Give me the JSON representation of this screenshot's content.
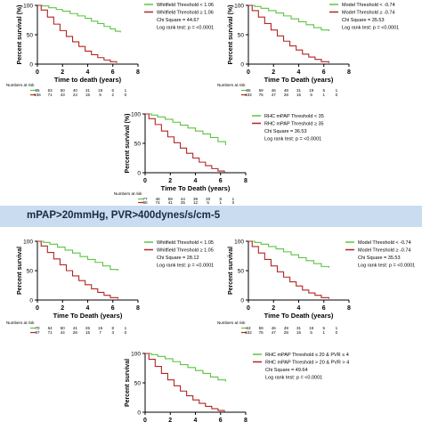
{
  "section_header": "mPAP>20mmHg, PVR>400dynes/s/cm-5",
  "colors": {
    "green": "#5cc442",
    "red": "#b52424",
    "axis": "#000000",
    "banner": "#c9dcf0"
  },
  "chart_data": [
    {
      "id": "p1",
      "type": "line",
      "ylabel": "Percent survival (%)",
      "xlabel": "Time to death (years)",
      "xlim": [
        0,
        8
      ],
      "ylim": [
        0,
        100
      ],
      "xticks": [
        "0",
        "2",
        "4",
        "6",
        "8"
      ],
      "yticks": [
        "0",
        "50",
        "100"
      ],
      "legend": [
        "Whitfield Threshold < 1.06",
        "Whitfield Threshold ≥ 1.06",
        "Chi Square = 44.67",
        "Log rank test: p = <0.0001"
      ],
      "risk_label": "Numbers at risk",
      "risk_rows": [
        [
          "85",
          "63",
          "50",
          "40",
          "31",
          "19",
          "6",
          "1"
        ],
        [
          "106",
          "71",
          "43",
          "24",
          "15",
          "5",
          "2",
          "0"
        ]
      ],
      "series": [
        {
          "color_key": "green",
          "x": [
            0,
            0.4,
            0.9,
            1.5,
            2.0,
            2.6,
            3.2,
            3.8,
            4.3,
            4.8,
            5.3,
            5.8,
            6.2,
            6.6
          ],
          "y": [
            100,
            99,
            96,
            93,
            90,
            86,
            82,
            78,
            73,
            69,
            64,
            60,
            56,
            54
          ]
        },
        {
          "color_key": "red",
          "x": [
            0,
            0.3,
            0.8,
            1.3,
            1.8,
            2.3,
            2.8,
            3.3,
            3.8,
            4.3,
            4.8,
            5.3,
            5.8,
            6.3
          ],
          "y": [
            100,
            92,
            80,
            68,
            57,
            47,
            38,
            30,
            22,
            16,
            11,
            7,
            4,
            2
          ]
        }
      ]
    },
    {
      "id": "p2",
      "type": "line",
      "ylabel": "Percent survival (%)",
      "xlabel": "Time To Death (years)",
      "xlim": [
        0,
        8
      ],
      "ylim": [
        0,
        100
      ],
      "xticks": [
        "0",
        "2",
        "4",
        "6",
        "8"
      ],
      "yticks": [
        "0",
        "50",
        "100"
      ],
      "legend": [
        "Model Threshold < -0.74",
        "Model Threshold ≥ -0.74",
        "Chi Square = 35.53",
        "Log rank test: p = <0.0001"
      ],
      "risk_label": "Numbers at risk",
      "risk_rows": [
        [
          "85",
          "59",
          "46",
          "48",
          "31",
          "19",
          "5",
          "1"
        ],
        [
          "102",
          "75",
          "47",
          "28",
          "15",
          "5",
          "1",
          "0"
        ]
      ],
      "series": [
        {
          "color_key": "green",
          "x": [
            0,
            0.5,
            1.0,
            1.6,
            2.2,
            2.8,
            3.4,
            4.0,
            4.6,
            5.2,
            5.8,
            6.4
          ],
          "y": [
            100,
            98,
            95,
            91,
            87,
            82,
            77,
            72,
            67,
            62,
            58,
            56
          ]
        },
        {
          "color_key": "red",
          "x": [
            0,
            0.3,
            0.8,
            1.3,
            1.8,
            2.3,
            2.8,
            3.3,
            3.8,
            4.3,
            4.8,
            5.3,
            5.8,
            6.4
          ],
          "y": [
            100,
            91,
            80,
            69,
            58,
            48,
            39,
            31,
            24,
            17,
            12,
            8,
            4,
            2
          ]
        }
      ]
    },
    {
      "id": "p3",
      "type": "line",
      "ylabel": "Percent survival (%)",
      "xlabel": "Time To Death (years)",
      "xlim": [
        0,
        8
      ],
      "ylim": [
        0,
        100
      ],
      "xticks": [
        "0",
        "2",
        "4",
        "6",
        "8"
      ],
      "yticks": [
        "0",
        "50",
        "100"
      ],
      "legend": [
        "RHC mPAP Threshold < 35",
        "RHC mPAP Threshold ≥ 35",
        "Chi Square = 36.53",
        "Log rank test: p = <0.0001"
      ],
      "risk_label": "Numbers at risk",
      "risk_rows": [
        [
          "77",
          "46",
          "59",
          "44",
          "39",
          "20",
          "8",
          "1"
        ],
        [
          "90",
          "74",
          "41",
          "25",
          "12",
          "5",
          "1",
          "0"
        ]
      ],
      "series": [
        {
          "color_key": "green",
          "x": [
            0,
            0.5,
            1.0,
            1.6,
            2.2,
            2.8,
            3.4,
            4.0,
            4.6,
            5.2,
            5.8,
            6.4
          ],
          "y": [
            100,
            98,
            95,
            91,
            86,
            81,
            76,
            71,
            66,
            60,
            53,
            47
          ]
        },
        {
          "color_key": "red",
          "x": [
            0,
            0.3,
            0.8,
            1.3,
            1.8,
            2.3,
            2.8,
            3.3,
            3.8,
            4.3,
            4.8,
            5.3,
            5.8,
            6.3
          ],
          "y": [
            100,
            92,
            82,
            71,
            61,
            51,
            42,
            33,
            25,
            18,
            12,
            7,
            3,
            1
          ]
        }
      ]
    },
    {
      "id": "p4",
      "type": "line",
      "ylabel": "Percent survival",
      "xlabel": "Time To Death (years)",
      "xlim": [
        0,
        8
      ],
      "ylim": [
        0,
        100
      ],
      "xticks": [
        "0",
        "2",
        "4",
        "6",
        "8"
      ],
      "yticks": [
        "0",
        "50",
        "100"
      ],
      "legend": [
        "Whitfield Threshold < 1.05",
        "Whitfield Threshold ≥ 1.05",
        "Chi Square = 28.12",
        "Log rank test: p = <0.0001"
      ],
      "risk_label": "Numbers at risk",
      "risk_rows": [
        [
          "70",
          "64",
          "50",
          "41",
          "26",
          "15",
          "8",
          "1"
        ],
        [
          "97",
          "71",
          "44",
          "28",
          "15",
          "7",
          "3",
          "0"
        ]
      ],
      "series": [
        {
          "color_key": "green",
          "x": [
            0,
            0.5,
            1.0,
            1.6,
            2.2,
            2.8,
            3.4,
            4.0,
            4.6,
            5.2,
            5.8,
            6.4
          ],
          "y": [
            100,
            98,
            95,
            90,
            85,
            80,
            74,
            69,
            64,
            58,
            52,
            50
          ]
        },
        {
          "color_key": "red",
          "x": [
            0,
            0.3,
            0.8,
            1.3,
            1.8,
            2.3,
            2.8,
            3.3,
            3.8,
            4.3,
            4.8,
            5.3,
            5.8,
            6.4
          ],
          "y": [
            100,
            92,
            81,
            70,
            60,
            50,
            41,
            33,
            26,
            19,
            13,
            8,
            4,
            2
          ]
        }
      ]
    },
    {
      "id": "p5",
      "type": "line",
      "ylabel": "Percent survival",
      "xlabel": "Time To Death (years)",
      "xlim": [
        0,
        8
      ],
      "ylim": [
        0,
        100
      ],
      "xticks": [
        "0",
        "2",
        "4",
        "6",
        "8"
      ],
      "yticks": [
        "0",
        "50",
        "100"
      ],
      "legend": [
        "Model Threshold < -0.74",
        "Model Threshold ≥ -0.74",
        "Chi Square = 35.53",
        "Log rank test: p = <0.0001"
      ],
      "risk_label": "Numbers at risk",
      "risk_rows": [
        [
          "63",
          "59",
          "46",
          "49",
          "31",
          "19",
          "5",
          "1"
        ],
        [
          "102",
          "75",
          "47",
          "28",
          "15",
          "5",
          "1",
          "0"
        ]
      ],
      "series": [
        {
          "color_key": "green",
          "x": [
            0,
            0.5,
            1.0,
            1.6,
            2.2,
            2.8,
            3.4,
            4.0,
            4.6,
            5.2,
            5.8,
            6.4
          ],
          "y": [
            100,
            98,
            95,
            91,
            87,
            82,
            77,
            72,
            67,
            62,
            57,
            55
          ]
        },
        {
          "color_key": "red",
          "x": [
            0,
            0.3,
            0.8,
            1.3,
            1.8,
            2.3,
            2.8,
            3.3,
            3.8,
            4.3,
            4.8,
            5.3,
            5.8,
            6.4
          ],
          "y": [
            100,
            91,
            80,
            69,
            58,
            48,
            39,
            31,
            24,
            17,
            12,
            8,
            4,
            2
          ]
        }
      ]
    },
    {
      "id": "p6",
      "type": "line",
      "ylabel": "Percent survival",
      "xlabel": "",
      "xlim": [
        0,
        8
      ],
      "ylim": [
        0,
        100
      ],
      "xticks": [
        "0",
        "2",
        "4",
        "6",
        "8"
      ],
      "yticks": [
        "0",
        "50",
        "100"
      ],
      "legend": [
        "RHC mPAP Threshold ≤ 20 & PVR ≤ 4",
        "RHC mPAP Threshold > 20 & PVR > 4",
        "Chi Square = 49.64",
        "Log rank test: p = <0.0001"
      ],
      "risk_label": "",
      "risk_rows": [],
      "series": [
        {
          "color_key": "green",
          "x": [
            0,
            0.5,
            1.0,
            1.6,
            2.2,
            2.8,
            3.4,
            4.0,
            4.6,
            5.2,
            5.8,
            6.4
          ],
          "y": [
            100,
            98,
            95,
            91,
            86,
            81,
            76,
            71,
            66,
            60,
            55,
            52
          ]
        },
        {
          "color_key": "red",
          "x": [
            0,
            0.3,
            0.8,
            1.3,
            1.8,
            2.3,
            2.8,
            3.3,
            3.8,
            4.3,
            4.8,
            5.3,
            5.8,
            6.3
          ],
          "y": [
            100,
            90,
            78,
            66,
            55,
            45,
            36,
            28,
            21,
            15,
            10,
            6,
            3,
            1
          ]
        }
      ]
    }
  ]
}
